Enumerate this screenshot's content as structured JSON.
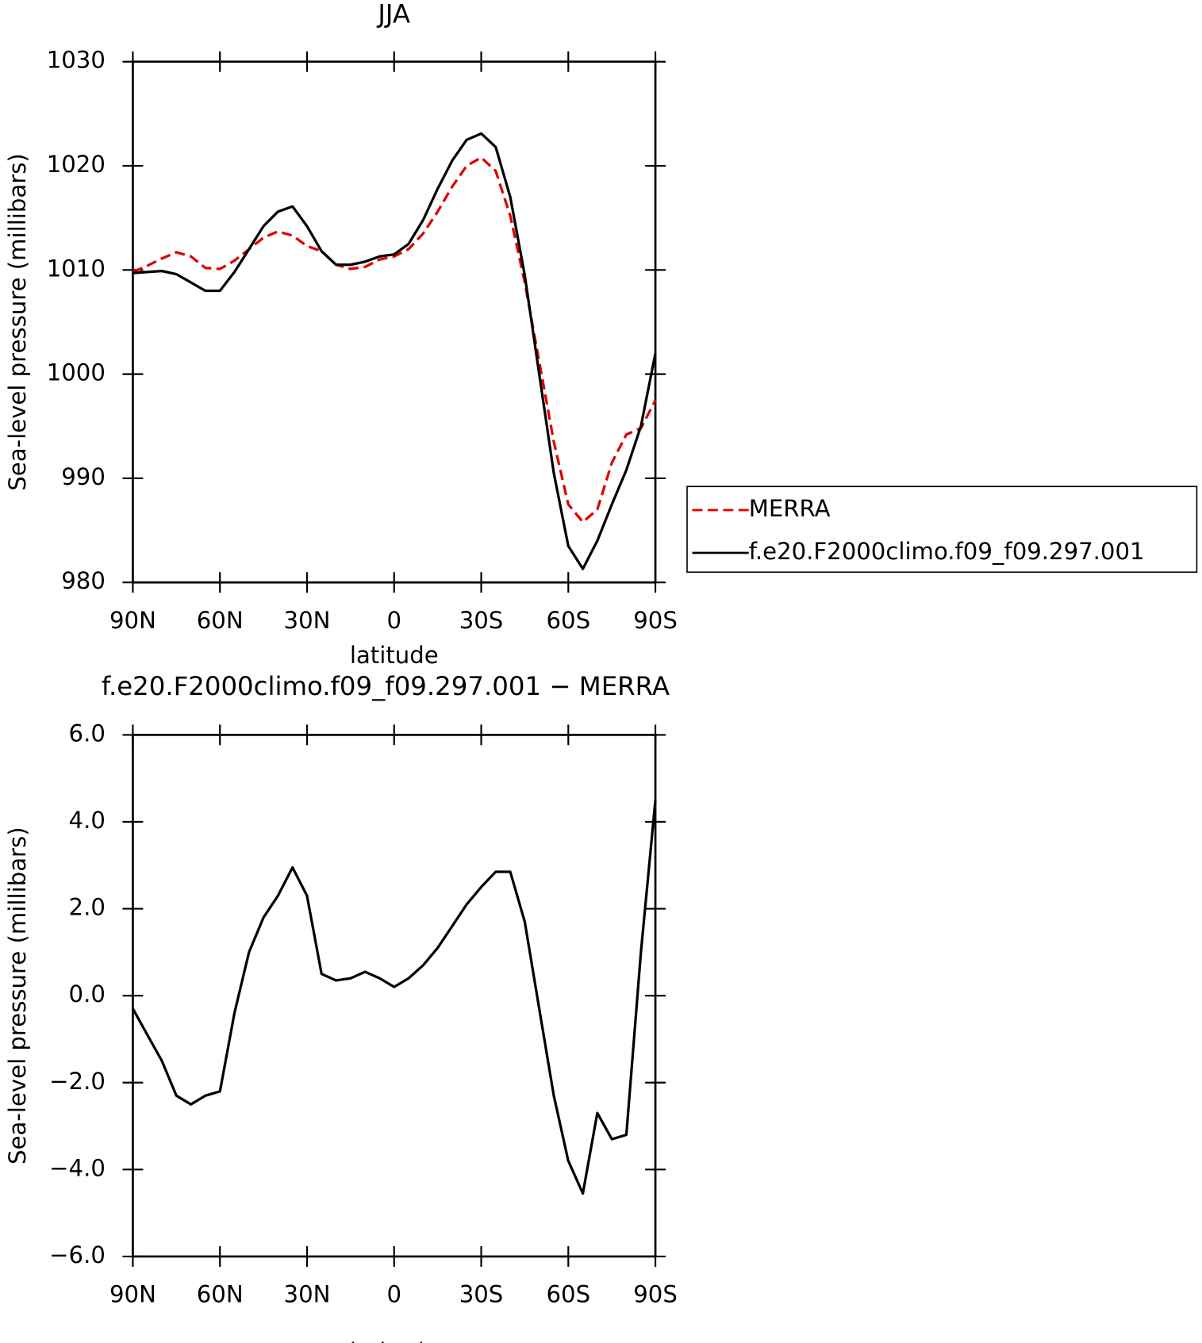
{
  "chart_data": [
    {
      "type": "line",
      "title": "JJA",
      "xlabel": "latitude",
      "ylabel": "Sea-level pressure (millibars)",
      "x": [
        90,
        85,
        80,
        75,
        70,
        65,
        60,
        55,
        50,
        45,
        40,
        35,
        30,
        25,
        20,
        15,
        10,
        5,
        0,
        -5,
        -10,
        -15,
        -20,
        -25,
        -30,
        -35,
        -40,
        -45,
        -50,
        -55,
        -60,
        -65,
        -70,
        -75,
        -80,
        -85,
        -90
      ],
      "xlim": [
        90,
        -90
      ],
      "xticks": [
        {
          "value": 90,
          "label": "90N"
        },
        {
          "value": 60,
          "label": "60N"
        },
        {
          "value": 30,
          "label": "30N"
        },
        0,
        {
          "value": -30,
          "label": "30S"
        },
        {
          "value": -60,
          "label": "60S"
        },
        {
          "value": -90,
          "label": "90S"
        }
      ],
      "ylim": [
        980,
        1030
      ],
      "yticks": [
        980,
        990,
        1000,
        1010,
        1020,
        1030
      ],
      "legend": "right",
      "series": [
        {
          "name": "MERRA",
          "color": "#e00000",
          "style": "dashed",
          "values": [
            1009.8,
            1010.4,
            1011.1,
            1011.7,
            1011.3,
            1010.2,
            1010.1,
            1010.9,
            1012,
            1013.1,
            1013.7,
            1013.3,
            1012.3,
            1011.8,
            1010.5,
            1010.1,
            1010.3,
            1011,
            1011.3,
            1012,
            1013.5,
            1015.6,
            1018,
            1020,
            1020.8,
            1019.5,
            1015.2,
            1008.8,
            1001.2,
            993.5,
            987.5,
            985.8,
            987,
            991.5,
            994.2,
            994.8,
            997.5
          ]
        },
        {
          "name": "f.e20.F2000climo.f09_f09.297.001",
          "color": "#000000",
          "style": "solid",
          "values": [
            1009.7,
            1009.8,
            1009.9,
            1009.6,
            1008.8,
            1008,
            1008,
            1009.8,
            1012,
            1014.2,
            1015.6,
            1016.1,
            1014.2,
            1011.8,
            1010.5,
            1010.5,
            1010.8,
            1011.3,
            1011.5,
            1012.5,
            1014.8,
            1017.8,
            1020.5,
            1022.5,
            1023.1,
            1021.8,
            1017,
            1009.5,
            1000,
            990.5,
            983.5,
            981.3,
            984,
            987.5,
            990.8,
            995,
            1002
          ]
        }
      ]
    },
    {
      "type": "line",
      "title": "f.e20.F2000climo.f09_f09.297.001 − MERRA",
      "xlabel": "latitude",
      "ylabel": "Sea-level pressure (millibars)",
      "x": [
        90,
        85,
        80,
        75,
        70,
        65,
        60,
        55,
        50,
        45,
        40,
        35,
        30,
        25,
        20,
        15,
        10,
        5,
        0,
        -5,
        -10,
        -15,
        -20,
        -25,
        -30,
        -35,
        -40,
        -45,
        -50,
        -55,
        -60,
        -65,
        -70,
        -75,
        -80,
        -85,
        -90
      ],
      "xlim": [
        90,
        -90
      ],
      "xticks": [
        {
          "value": 90,
          "label": "90N"
        },
        {
          "value": 60,
          "label": "60N"
        },
        {
          "value": 30,
          "label": "30N"
        },
        0,
        {
          "value": -30,
          "label": "30S"
        },
        {
          "value": -60,
          "label": "60S"
        },
        {
          "value": -90,
          "label": "90S"
        }
      ],
      "ylim": [
        -6,
        6
      ],
      "yticks": [
        {
          "value": -6,
          "label": "−6.0"
        },
        {
          "value": -4,
          "label": "−4.0"
        },
        {
          "value": -2,
          "label": "−2.0"
        },
        {
          "value": 0,
          "label": "0.0"
        },
        {
          "value": 2,
          "label": "2.0"
        },
        {
          "value": 4,
          "label": "4.0"
        },
        {
          "value": 6,
          "label": "6.0"
        }
      ],
      "series": [
        {
          "color": "#000000",
          "style": "solid",
          "values": [
            -0.3,
            -0.9,
            -1.5,
            -2.3,
            -2.5,
            -2.3,
            -2.2,
            -0.4,
            1.0,
            1.8,
            2.3,
            2.95,
            2.3,
            0.5,
            0.35,
            0.4,
            0.55,
            0.4,
            0.2,
            0.4,
            0.7,
            1.1,
            1.6,
            2.1,
            2.5,
            2.85,
            2.85,
            1.7,
            -0.3,
            -2.3,
            -3.8,
            -4.55,
            -2.7,
            -3.3,
            -3.2,
            1.0,
            4.5
          ]
        }
      ]
    }
  ]
}
